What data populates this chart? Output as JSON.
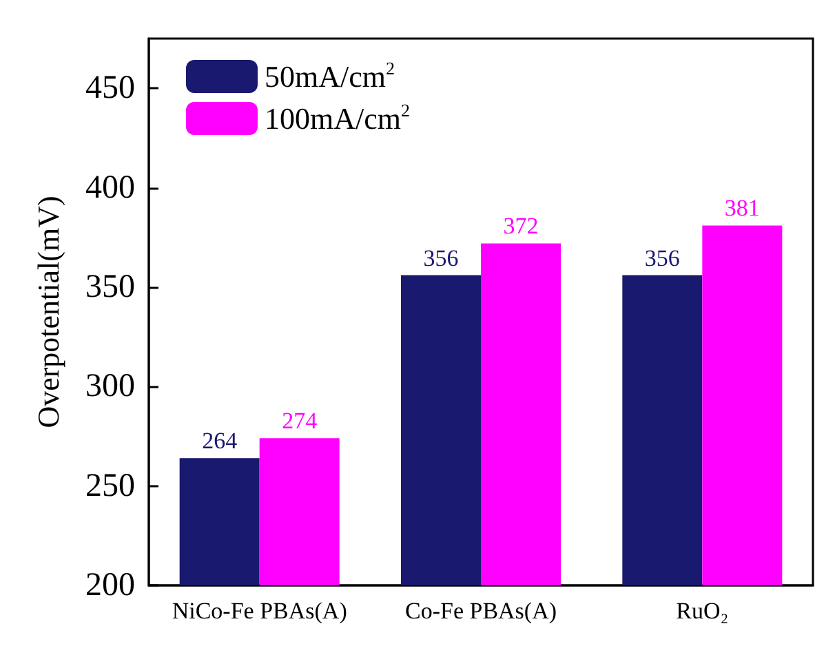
{
  "chart_data": {
    "type": "bar",
    "ylabel": "Overpotential(mV)",
    "categories": [
      "NiCo-Fe PBAs(A)",
      "Co-Fe PBAs(A)",
      "RuO₂"
    ],
    "series": [
      {
        "name": "50mA/cm$^{2}$",
        "color": "#191970",
        "values": [
          264,
          356,
          356
        ]
      },
      {
        "name": "100mA/cm$^{2}$",
        "color": "#ff00ff",
        "values": [
          274,
          372,
          381
        ]
      }
    ],
    "ylim": [
      200,
      475
    ],
    "yticks": [
      200,
      250,
      300,
      350,
      400,
      450
    ],
    "legend": "top left",
    "data_labels": true,
    "grid": false
  }
}
